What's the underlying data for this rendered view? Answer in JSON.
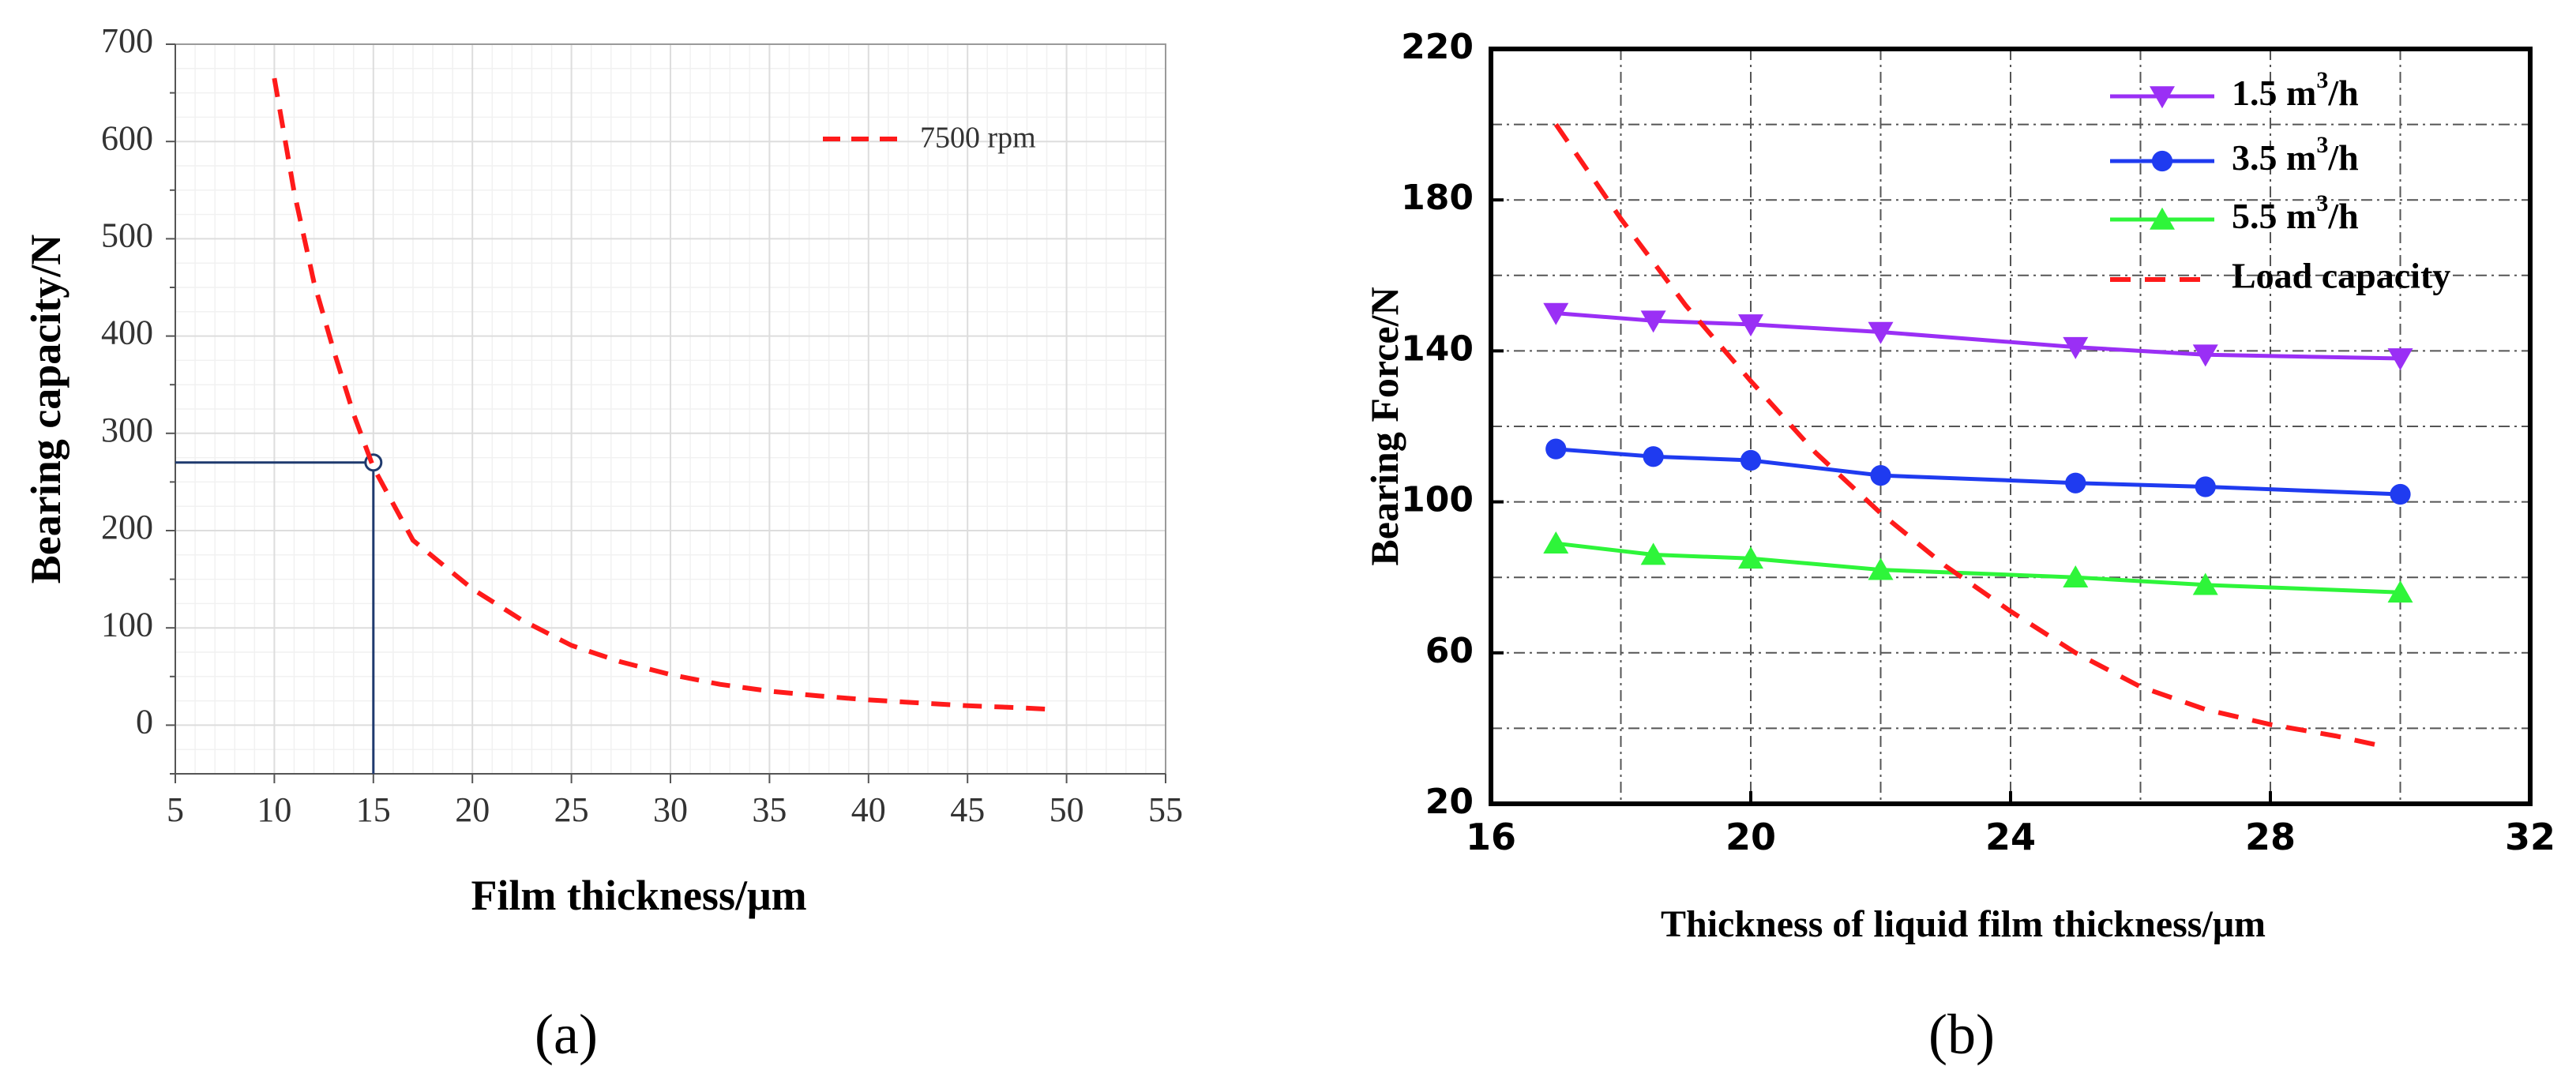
{
  "figure": {
    "panel_a_label": "(a)",
    "panel_b_label": "(b)"
  },
  "chart_data": [
    {
      "type": "line",
      "title": "",
      "xlabel": "Film thickness/μm",
      "ylabel": "Bearing capacity/N",
      "xlim": [
        5,
        55
      ],
      "ylim": [
        -50,
        700
      ],
      "xticks": [
        5,
        10,
        15,
        20,
        25,
        30,
        35,
        40,
        45,
        50,
        55
      ],
      "yticks": [
        0,
        100,
        200,
        300,
        400,
        500,
        600,
        700
      ],
      "grid": true,
      "legend_position": "top-right",
      "series": [
        {
          "name": "7500 rpm",
          "style": "dashed",
          "color": "#ff1a1a",
          "x": [
            10,
            11,
            12,
            13,
            14,
            15,
            17,
            20,
            22.5,
            25,
            27.5,
            30,
            32.5,
            35,
            37.5,
            40,
            42.5,
            45,
            47.5,
            49.5
          ],
          "y": [
            665,
            548,
            455,
            385,
            320,
            265,
            190,
            140,
            108,
            82,
            65,
            52,
            42,
            35,
            30,
            26,
            23,
            20,
            18,
            16
          ]
        }
      ],
      "annotation": {
        "point": {
          "x": 15,
          "y": 270
        },
        "guide_color": "#1f3a6e"
      }
    },
    {
      "type": "line",
      "title": "",
      "xlabel": "Thickness of liquid film thickness/μm",
      "ylabel": "Bearing Force/N",
      "xlim": [
        16,
        32
      ],
      "ylim": [
        20,
        220
      ],
      "xticks": [
        16,
        20,
        24,
        28,
        32
      ],
      "yticks": [
        20,
        60,
        100,
        140,
        180,
        220
      ],
      "grid": true,
      "legend_position": "top-right",
      "series": [
        {
          "name": "1.5 m³/h",
          "name_base": "1.5 m",
          "name_sup": "3",
          "name_tail": "/h",
          "marker": "triangle-down",
          "color": "#9a2ff5",
          "x": [
            17,
            18.5,
            20,
            22,
            25,
            27,
            30
          ],
          "y": [
            150,
            148,
            147,
            145,
            141,
            139,
            138
          ]
        },
        {
          "name": "3.5 m³/h",
          "name_base": "3.5 m",
          "name_sup": "3",
          "name_tail": "/h",
          "marker": "circle",
          "color": "#1f3bf0",
          "x": [
            17,
            18.5,
            20,
            22,
            25,
            27,
            30
          ],
          "y": [
            114,
            112,
            111,
            107,
            105,
            104,
            102
          ]
        },
        {
          "name": "5.5 m³/h",
          "name_base": "5.5 m",
          "name_sup": "3",
          "name_tail": "/h",
          "marker": "triangle-up",
          "color": "#2ef53a",
          "x": [
            17,
            18.5,
            20,
            22,
            25,
            27,
            30
          ],
          "y": [
            89,
            86,
            85,
            82,
            80,
            78,
            76
          ]
        },
        {
          "name": "Load capacity",
          "marker": "none",
          "style": "dashed",
          "color": "#ff1a1a",
          "x": [
            17,
            18,
            19,
            20,
            21,
            22,
            23,
            24,
            25,
            26,
            27,
            28,
            29,
            29.8
          ],
          "y": [
            200,
            175,
            152,
            132,
            113,
            97,
            83,
            71,
            60,
            51,
            45,
            41,
            38,
            35
          ]
        }
      ]
    }
  ]
}
